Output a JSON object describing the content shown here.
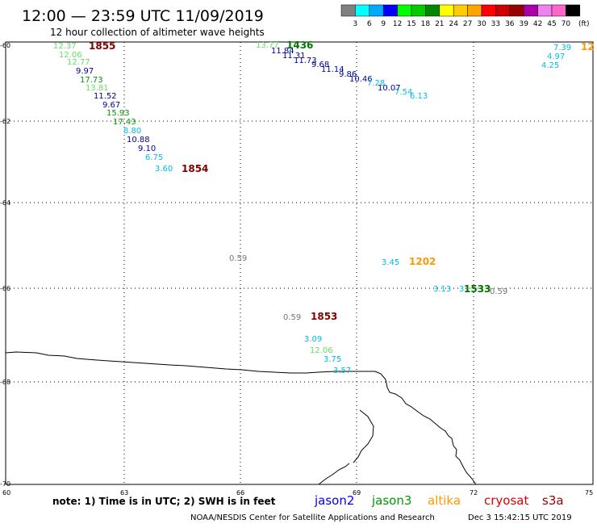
{
  "header": {
    "title": "12:00 — 23:59 UTC 11/09/2019",
    "subtitle": "12 hour collection of altimeter wave heights"
  },
  "color_scale": {
    "unit": "(ft)",
    "ticks": [
      "3",
      "6",
      "9",
      "12",
      "15",
      "18",
      "21",
      "24",
      "27",
      "30",
      "33",
      "36",
      "39",
      "42",
      "45",
      "70"
    ],
    "colors": [
      "#808080",
      "#00ffff",
      "#00aaff",
      "#0000ff",
      "#00ff00",
      "#00cc00",
      "#008800",
      "#ffff00",
      "#ffcc00",
      "#ffa500",
      "#ff0000",
      "#cc0000",
      "#990000",
      "#aa00aa",
      "#ee82ee",
      "#ff66cc",
      "#000000"
    ]
  },
  "axes": {
    "y_ticks": [
      "-60",
      "-62",
      "-64",
      "-66",
      "-68",
      "-70"
    ],
    "x_ticks": [
      "60",
      "63",
      "66",
      "69",
      "72",
      "75"
    ]
  },
  "observations": [
    {
      "text": "12.37",
      "color": "#66dd66"
    },
    {
      "text": "12.06",
      "color": "#66dd66"
    },
    {
      "text": "12.77",
      "color": "#66dd66"
    },
    {
      "text": "9.97",
      "color": "#000099"
    },
    {
      "text": "17.73",
      "color": "#009900"
    },
    {
      "text": "13.81",
      "color": "#66dd66"
    },
    {
      "text": "11.52",
      "color": "#000099"
    },
    {
      "text": "9.67",
      "color": "#000099"
    },
    {
      "text": "15.93",
      "color": "#009900"
    },
    {
      "text": "17.43",
      "color": "#009900"
    },
    {
      "text": "8.80",
      "color": "#00bbee"
    },
    {
      "text": "10.88",
      "color": "#000099"
    },
    {
      "text": "9.10",
      "color": "#000099"
    },
    {
      "text": "6.75",
      "color": "#00bbee"
    },
    {
      "text": "3.60",
      "color": "#00bbee"
    },
    {
      "text": "13.77",
      "color": "#66dd66"
    },
    {
      "text": "11.84",
      "color": "#000099"
    },
    {
      "text": "11.31",
      "color": "#000099"
    },
    {
      "text": "11.73",
      "color": "#000099"
    },
    {
      "text": "9.68",
      "color": "#000099"
    },
    {
      "text": "11.14",
      "color": "#000099"
    },
    {
      "text": "9.86",
      "color": "#000099"
    },
    {
      "text": "10.46",
      "color": "#000099"
    },
    {
      "text": "7.28",
      "color": "#00bbee"
    },
    {
      "text": "10.07",
      "color": "#000099"
    },
    {
      "text": "7.54",
      "color": "#00bbee"
    },
    {
      "text": "6.13",
      "color": "#00bbee"
    },
    {
      "text": "7.39",
      "color": "#00bbee"
    },
    {
      "text": "4.97",
      "color": "#00bbee"
    },
    {
      "text": "4.25",
      "color": "#00bbee"
    },
    {
      "text": "0.59",
      "color": "#777777"
    },
    {
      "text": "3.45",
      "color": "#00bbee"
    },
    {
      "text": "3.13",
      "color": "#00bbee"
    },
    {
      "text": "3.",
      "color": "#00bbee"
    },
    {
      "text": "0.59",
      "color": "#777777"
    },
    {
      "text": "0.59",
      "color": "#777777"
    },
    {
      "text": "3.09",
      "color": "#00bbee"
    },
    {
      "text": "12.06",
      "color": "#66dd66"
    },
    {
      "text": "3.75",
      "color": "#00bbee"
    },
    {
      "text": "3.57",
      "color": "#00bbee"
    }
  ],
  "pass_times": [
    {
      "text": "1855",
      "color": "#800000"
    },
    {
      "text": "1854",
      "color": "#800000"
    },
    {
      "text": "1436",
      "color": "#007700"
    },
    {
      "text": "1202",
      "color": "#ff9900"
    },
    {
      "text": "12",
      "color": "#ff9900"
    },
    {
      "text": "1533",
      "color": "#007700"
    },
    {
      "text": "1853",
      "color": "#800000"
    }
  ],
  "footer": {
    "note": "note:  1) Time is in UTC; 2) SWH is in feet",
    "satellites": [
      {
        "name": "jason2",
        "color": "#0000ff"
      },
      {
        "name": "jason3",
        "color": "#009900"
      },
      {
        "name": "altika",
        "color": "#ff9900"
      },
      {
        "name": "cryosat",
        "color": "#dd0000"
      },
      {
        "name": "s3a",
        "color": "#990000"
      }
    ],
    "credit": "NOAA/NESDIS Center for Satellite Applications and Research",
    "generated": "Dec  3 15:42:15 UTC 2019"
  }
}
